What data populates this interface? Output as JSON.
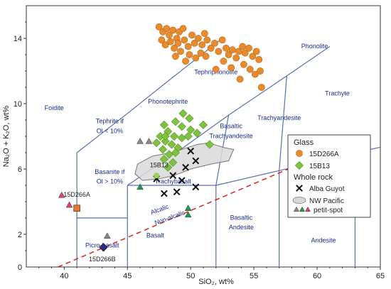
{
  "chart_data": {
    "type": "scatter",
    "xlabel": "SiO₂, wt%",
    "ylabel": "Na₂O + K₂O, wt%",
    "xlim": [
      37,
      65
    ],
    "ylim": [
      0,
      16
    ],
    "xticks": [
      40,
      45,
      50,
      55,
      60,
      65
    ],
    "yticks": [
      2,
      6,
      10,
      14
    ],
    "grid": false,
    "legend_position": "right",
    "fields": [
      {
        "label": "Foidite",
        "x": 39.2,
        "y": 9.6
      },
      {
        "label": "Phonolite",
        "x": 59.8,
        "y": 13.4
      },
      {
        "label": "Tephriphonolite",
        "x": 52.0,
        "y": 11.8
      },
      {
        "label": "Trachyte",
        "x": 61.6,
        "y": 10.5
      },
      {
        "label": "Phonotephrite",
        "x": 48.2,
        "y": 10.0
      },
      {
        "label": "Trachyandesite",
        "x": 57.0,
        "y": 9.0
      },
      {
        "label": "Tephrite if",
        "x": 43.6,
        "y": 8.8
      },
      {
        "label": "Ol < 10%",
        "x": 43.6,
        "y": 8.2
      },
      {
        "label": "Basaltic",
        "x": 53.2,
        "y": 8.5
      },
      {
        "label": "Trachyandesite",
        "x": 53.2,
        "y": 7.9
      },
      {
        "label": "Basanite if",
        "x": 43.6,
        "y": 5.7
      },
      {
        "label": "Ol > 10%",
        "x": 43.6,
        "y": 5.1
      },
      {
        "label": "Trachybasalt",
        "x": 48.6,
        "y": 5.1
      },
      {
        "label": "Picro-basalt",
        "x": 43.0,
        "y": 1.2
      },
      {
        "label": "Basalt",
        "x": 47.2,
        "y": 1.8
      },
      {
        "label": "Basaltic",
        "x": 54.0,
        "y": 2.9
      },
      {
        "label": "Andesite",
        "x": 54.0,
        "y": 2.3
      },
      {
        "label": "Andesite",
        "x": 60.5,
        "y": 1.5
      }
    ],
    "divider_labels": [
      {
        "label": "Alcalic",
        "x": 47.6,
        "y": 3.4,
        "rotate": -20
      },
      {
        "label": "Non-alcalic",
        "x": 48.4,
        "y": 2.9,
        "rotate": -20
      }
    ],
    "sample_labels": [
      {
        "label": "15D266A",
        "x": 41.0,
        "y": 4.3
      },
      {
        "label": "15D266B",
        "x": 43.0,
        "y": 0.35
      },
      {
        "label": "15B13",
        "x": 47.5,
        "y": 6.1
      }
    ],
    "series": [
      {
        "name": "15D266A",
        "group": "Glass",
        "marker": "circle",
        "color": "#e98a2c",
        "points": [
          [
            47.5,
            14.7
          ],
          [
            47.8,
            14.4
          ],
          [
            48.1,
            14.6
          ],
          [
            48.3,
            14.2
          ],
          [
            48.6,
            14.5
          ],
          [
            48.9,
            14.0
          ],
          [
            49.1,
            14.4
          ],
          [
            49.4,
            14.6
          ],
          [
            47.7,
            13.9
          ],
          [
            48.0,
            13.6
          ],
          [
            48.4,
            13.8
          ],
          [
            48.7,
            13.4
          ],
          [
            49.0,
            13.7
          ],
          [
            49.2,
            13.2
          ],
          [
            49.5,
            13.9
          ],
          [
            49.8,
            13.5
          ],
          [
            50.1,
            14.2
          ],
          [
            50.3,
            13.7
          ],
          [
            50.6,
            14.0
          ],
          [
            50.9,
            13.6
          ],
          [
            51.1,
            14.3
          ],
          [
            51.3,
            13.9
          ],
          [
            51.6,
            13.4
          ],
          [
            51.9,
            13.7
          ],
          [
            52.2,
            13.2
          ],
          [
            52.5,
            13.9
          ],
          [
            52.8,
            13.4
          ],
          [
            53.0,
            13.0
          ],
          [
            53.3,
            13.3
          ],
          [
            53.6,
            12.8
          ],
          [
            53.8,
            13.2
          ],
          [
            54.1,
            13.5
          ],
          [
            54.3,
            13.1
          ],
          [
            54.6,
            13.4
          ],
          [
            54.9,
            12.9
          ],
          [
            55.2,
            13.2
          ],
          [
            55.4,
            12.7
          ],
          [
            54.2,
            12.4
          ],
          [
            54.7,
            12.1
          ],
          [
            55.1,
            11.8
          ],
          [
            55.5,
            12.0
          ],
          [
            53.2,
            12.2
          ],
          [
            52.6,
            12.6
          ],
          [
            49.9,
            13.0
          ],
          [
            50.4,
            12.8
          ],
          [
            51.2,
            12.9
          ],
          [
            48.8,
            12.9
          ],
          [
            49.6,
            12.6
          ],
          [
            53.9,
            11.5
          ],
          [
            55.6,
            11.0
          ],
          [
            52.0,
            12.1
          ],
          [
            50.8,
            13.1
          ]
        ]
      },
      {
        "name": "15B13",
        "group": "Glass",
        "marker": "diamond",
        "color": "#7fc241",
        "points": [
          [
            49.4,
            9.4
          ],
          [
            49.9,
            9.1
          ],
          [
            48.8,
            8.9
          ],
          [
            49.3,
            8.6
          ],
          [
            50.0,
            8.4
          ],
          [
            51.0,
            8.7
          ],
          [
            47.9,
            8.7
          ],
          [
            48.2,
            8.3
          ],
          [
            48.7,
            8.0
          ],
          [
            47.6,
            8.0
          ],
          [
            48.0,
            7.7
          ],
          [
            48.5,
            7.5
          ],
          [
            47.3,
            7.6
          ],
          [
            49.3,
            7.9
          ],
          [
            49.0,
            7.3
          ],
          [
            47.8,
            7.2
          ],
          [
            48.3,
            6.9
          ],
          [
            47.9,
            6.6
          ],
          [
            48.6,
            6.4
          ],
          [
            48.2,
            6.1
          ],
          [
            48.8,
            7.0
          ],
          [
            49.8,
            8.0
          ],
          [
            50.5,
            8.2
          ],
          [
            51.5,
            7.5
          ],
          [
            48.0,
            8.0
          ]
        ]
      },
      {
        "name": "Alba Guyot",
        "group": "Whole rock",
        "marker": "x",
        "color": "#111111",
        "points": [
          [
            50.0,
            7.1
          ],
          [
            50.4,
            6.5
          ],
          [
            49.6,
            6.1
          ],
          [
            48.6,
            5.6
          ],
          [
            47.3,
            5.4
          ],
          [
            49.3,
            5.3
          ],
          [
            50.4,
            4.9
          ],
          [
            47.9,
            4.5
          ],
          [
            48.9,
            4.6
          ]
        ]
      },
      {
        "name": "NW Pacific petit-spot",
        "group": "Whole rock",
        "marker": "triangle",
        "color": "#888888",
        "points": [
          [
            46.0,
            7.7
          ],
          [
            46.7,
            7.7
          ],
          [
            43.4,
            1.9
          ],
          [
            46.0,
            4.9
          ],
          [
            49.8,
            3.6
          ],
          [
            49.8,
            3.2
          ],
          [
            39.8,
            4.4
          ],
          [
            40.4,
            3.8
          ]
        ]
      },
      {
        "name": "15D266A",
        "group": "Whole rock",
        "marker": "square",
        "color": "#e07a3a",
        "points": [
          [
            41.0,
            3.6
          ]
        ]
      },
      {
        "name": "15D266B",
        "group": "Whole rock",
        "marker": "diamond",
        "color": "#2a2a8c",
        "points": [
          [
            43.1,
            1.2
          ]
        ]
      }
    ],
    "single_markers": [
      {
        "x": 47.3,
        "y": 5.6,
        "marker": "circle",
        "color": "#9ed15a"
      }
    ],
    "triangle_colors": [
      {
        "x": 46.0,
        "y": 7.7,
        "color": "#888888"
      },
      {
        "x": 46.7,
        "y": 7.7,
        "color": "#888888"
      },
      {
        "x": 43.4,
        "y": 1.9,
        "color": "#888888"
      },
      {
        "x": 46.0,
        "y": 4.9,
        "color": "#1f9a4a"
      },
      {
        "x": 49.8,
        "y": 3.6,
        "color": "#1f9a4a"
      },
      {
        "x": 49.8,
        "y": 3.2,
        "color": "#1f9a4a"
      },
      {
        "x": 39.8,
        "y": 4.4,
        "color": "#e0407a"
      },
      {
        "x": 40.4,
        "y": 3.8,
        "color": "#e0407a"
      }
    ],
    "boundaries": [
      [
        [
          41,
          0
        ],
        [
          41,
          7
        ]
      ],
      [
        [
          41,
          7
        ],
        [
          45,
          9.4
        ]
      ],
      [
        [
          45,
          9.4
        ],
        [
          48.4,
          11.5
        ]
      ],
      [
        [
          48.4,
          11.5
        ],
        [
          52.5,
          14
        ]
      ],
      [
        [
          41,
          3
        ],
        [
          45,
          3
        ]
      ],
      [
        [
          45,
          0
        ],
        [
          45,
          5
        ]
      ],
      [
        [
          45,
          5
        ],
        [
          49.4,
          7.3
        ]
      ],
      [
        [
          49.4,
          7.3
        ],
        [
          53,
          9.3
        ]
      ],
      [
        [
          53,
          9.3
        ],
        [
          57.6,
          11.7
        ]
      ],
      [
        [
          57.6,
          11.7
        ],
        [
          61,
          13.5
        ]
      ],
      [
        [
          52,
          0
        ],
        [
          52,
          5
        ]
      ],
      [
        [
          52,
          5
        ],
        [
          57,
          5.9
        ]
      ],
      [
        [
          57,
          0
        ],
        [
          57,
          5.9
        ]
      ],
      [
        [
          57,
          5.9
        ],
        [
          63,
          7
        ]
      ],
      [
        [
          63,
          0
        ],
        [
          63,
          7
        ]
      ],
      [
        [
          45,
          5
        ],
        [
          52,
          5
        ]
      ],
      [
        [
          52,
          5
        ],
        [
          53,
          9.3
        ]
      ],
      [
        [
          57,
          5.9
        ],
        [
          57.6,
          11.7
        ]
      ],
      [
        [
          63,
          7
        ],
        [
          69,
          8
        ]
      ]
    ],
    "dashed_line": [
      [
        39.5,
        0
      ],
      [
        63.5,
        7.9
      ]
    ],
    "outline_shape": [
      [
        45.8,
        6.3
      ],
      [
        47.0,
        6.8
      ],
      [
        48.5,
        7.0
      ],
      [
        50.5,
        7.5
      ],
      [
        51.4,
        7.6
      ],
      [
        52.7,
        7.3
      ],
      [
        53.4,
        7.2
      ],
      [
        53.0,
        6.5
      ],
      [
        51.6,
        6.3
      ],
      [
        50.0,
        6.0
      ],
      [
        48.7,
        5.6
      ],
      [
        47.5,
        5.4
      ],
      [
        46.2,
        5.3
      ],
      [
        45.6,
        5.7
      ],
      [
        45.8,
        6.3
      ]
    ],
    "legend": {
      "glass_title": "Glass",
      "glass_items": [
        "15D266A",
        "15B13"
      ],
      "whole_rock_title": "Whole rock",
      "whole_rock_items": [
        "Alba Guyot",
        "NW Pacific",
        "petit-spot"
      ]
    }
  }
}
